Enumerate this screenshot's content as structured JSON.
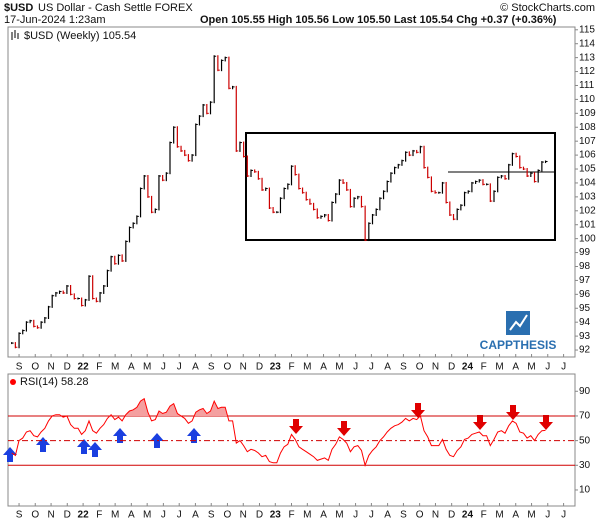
{
  "header": {
    "symbol": "$USD",
    "name": "US Dollar - Cash Settle FOREX",
    "source": "© StockCharts.com",
    "date": "17-Jun-2024 1:23am",
    "quote": "Open 105.55  High 105.56  Low 105.50  Last 105.54  Chg +0.37 (+0.36%)"
  },
  "logo": "CAPPTHESIS",
  "chart_data": [
    {
      "type": "price",
      "legend": "$USD (Weekly) 105.54",
      "up_color": "#000000",
      "down_color": "#cc0000",
      "xlim": [
        -1,
        153
      ],
      "xticks": [
        {
          "value": 2,
          "label": "S"
        },
        {
          "value": 6.4,
          "label": "O"
        },
        {
          "value": 10.7,
          "label": "N"
        },
        {
          "value": 15.1,
          "label": "D"
        },
        {
          "value": 19.4,
          "label": "22"
        },
        {
          "value": 23.8,
          "label": "F"
        },
        {
          "value": 28.1,
          "label": "M"
        },
        {
          "value": 32.5,
          "label": "A"
        },
        {
          "value": 36.8,
          "label": "M"
        },
        {
          "value": 41.2,
          "label": "J"
        },
        {
          "value": 45.5,
          "label": "J"
        },
        {
          "value": 49.9,
          "label": "A"
        },
        {
          "value": 54.2,
          "label": "S"
        },
        {
          "value": 58.6,
          "label": "O"
        },
        {
          "value": 62.9,
          "label": "N"
        },
        {
          "value": 67.3,
          "label": "D"
        },
        {
          "value": 71.6,
          "label": "23"
        },
        {
          "value": 76,
          "label": "F"
        },
        {
          "value": 80.3,
          "label": "M"
        },
        {
          "value": 84.7,
          "label": "A"
        },
        {
          "value": 89,
          "label": "M"
        },
        {
          "value": 93.4,
          "label": "J"
        },
        {
          "value": 97.7,
          "label": "J"
        },
        {
          "value": 102.1,
          "label": "A"
        },
        {
          "value": 106.4,
          "label": "S"
        },
        {
          "value": 110.8,
          "label": "O"
        },
        {
          "value": 115.1,
          "label": "N"
        },
        {
          "value": 119.5,
          "label": "D"
        },
        {
          "value": 123.8,
          "label": "24"
        },
        {
          "value": 128.2,
          "label": "F"
        },
        {
          "value": 132.5,
          "label": "M"
        },
        {
          "value": 136.9,
          "label": "A"
        },
        {
          "value": 141.2,
          "label": "M"
        },
        {
          "value": 145.6,
          "label": "J"
        },
        {
          "value": 149.9,
          "label": "J"
        }
      ],
      "ylim": [
        91.5,
        115.2
      ],
      "yticks": [
        92,
        93,
        94,
        95,
        96,
        97,
        98,
        99,
        100,
        101,
        102,
        103,
        104,
        105,
        106,
        107,
        108,
        109,
        110,
        111,
        112,
        113,
        114,
        115
      ],
      "values": [
        92.5,
        92.2,
        93.2,
        93.4,
        94.0,
        94.1,
        93.7,
        93.6,
        94.0,
        94.3,
        95.1,
        95.9,
        96.1,
        96.2,
        96.1,
        96.6,
        96.0,
        95.7,
        95.7,
        95.2,
        95.6,
        97.3,
        95.7,
        95.5,
        96.1,
        96.6,
        97.7,
        98.7,
        98.2,
        98.8,
        98.4,
        99.8,
        100.8,
        101.1,
        101.6,
        103.6,
        104.5,
        103.0,
        101.9,
        102.1,
        104.5,
        104.2,
        104.7,
        106.9,
        108.0,
        106.6,
        106.3,
        106.0,
        105.6,
        106.0,
        108.2,
        108.8,
        109.6,
        109.0,
        109.8,
        113.1,
        112.1,
        112.8,
        113.0,
        110.8,
        110.9,
        106.3,
        106.9,
        105.9,
        104.5,
        104.9,
        104.8,
        104.3,
        103.5,
        103.6,
        102.2,
        101.9,
        101.9,
        102.9,
        103.6,
        103.9,
        105.2,
        104.6,
        103.6,
        103.3,
        102.8,
        102.5,
        102.1,
        101.5,
        101.6,
        101.7,
        101.3,
        102.6,
        103.2,
        104.2,
        104.0,
        103.5,
        102.3,
        102.9,
        103.0,
        102.3,
        99.9,
        101.1,
        101.7,
        102.1,
        102.9,
        103.4,
        104.1,
        104.7,
        105.1,
        105.3,
        105.6,
        106.2,
        106.0,
        106.3,
        106.2,
        106.6,
        105.1,
        104.4,
        103.4,
        103.3,
        103.3,
        104.0,
        102.6,
        101.7,
        101.4,
        102.1,
        102.4,
        103.3,
        103.4,
        104.0,
        104.1,
        104.2,
        103.9,
        103.9,
        102.7,
        103.4,
        104.4,
        104.5,
        104.3,
        105.3,
        106.1,
        105.9,
        105.1,
        105.0,
        104.5,
        104.7,
        104.1,
        104.9,
        105.5,
        105.54
      ]
    },
    {
      "type": "rsi",
      "legend": "RSI(14) 58.28",
      "color": "#ff0000",
      "fill_color": "#f4a0a0",
      "overbought": 70,
      "oversold": 30,
      "centerline": 50,
      "ylim": [
        -3,
        104
      ],
      "yticks": [
        10,
        30,
        50,
        70,
        90
      ],
      "values": [
        40,
        38,
        50,
        52,
        57,
        58,
        54,
        53,
        57,
        60,
        66,
        70,
        71,
        71,
        69,
        70,
        63,
        60,
        60,
        55,
        58,
        66,
        58,
        56,
        60,
        63,
        68,
        71,
        67,
        69,
        66,
        71,
        74,
        75,
        77,
        82,
        84,
        73,
        66,
        67,
        74,
        72,
        73,
        78,
        80,
        72,
        70,
        68,
        64,
        66,
        73,
        75,
        76,
        72,
        74,
        82,
        76,
        77,
        77,
        66,
        66,
        48,
        50,
        46,
        41,
        43,
        42,
        40,
        37,
        38,
        33,
        32,
        32,
        40,
        45,
        47,
        55,
        51,
        45,
        43,
        41,
        39,
        37,
        34,
        35,
        36,
        34,
        43,
        47,
        53,
        51,
        48,
        41,
        45,
        46,
        42,
        30,
        38,
        42,
        45,
        50,
        53,
        57,
        60,
        62,
        63,
        65,
        68,
        66,
        68,
        67,
        70,
        58,
        53,
        46,
        46,
        46,
        51,
        43,
        38,
        37,
        42,
        45,
        51,
        52,
        55,
        56,
        57,
        54,
        54,
        46,
        51,
        57,
        58,
        56,
        62,
        66,
        64,
        57,
        56,
        52,
        54,
        50,
        55,
        58,
        58.28
      ]
    }
  ]
}
